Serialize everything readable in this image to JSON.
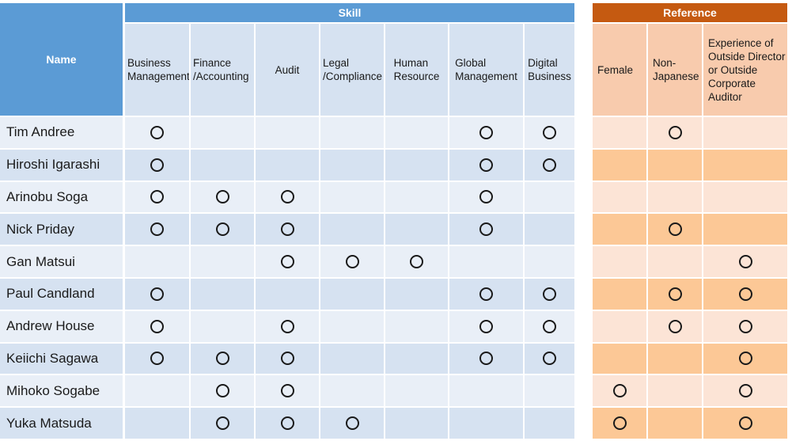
{
  "skill_header": "Skill",
  "reference_header": "Reference",
  "name_header": "Name",
  "skill_columns": [
    "Business\nManagement",
    "Finance\n/Accounting",
    "Audit",
    "Legal\n/Compliance",
    "Human\nResource",
    "Global\nManagement",
    "Digital\nBusiness"
  ],
  "reference_columns": [
    "Female",
    "Non-\nJapanese",
    "Experience of\nOutside Director\nor Outside\nCorporate\nAuditor"
  ],
  "mark_symbol": "circle",
  "colors": {
    "skill_header": "#5b9bd5",
    "reference_header": "#c55a11",
    "skill_row_light": "#e9eff7",
    "skill_row_dark": "#d6e2f1",
    "reference_row_light": "#fce4d6",
    "reference_row_dark": "#fcc896"
  },
  "rows": [
    {
      "name": "Tim Andree",
      "skills": [
        1,
        0,
        0,
        0,
        0,
        1,
        1
      ],
      "reference": [
        0,
        1,
        0
      ]
    },
    {
      "name": "Hiroshi Igarashi",
      "skills": [
        1,
        0,
        0,
        0,
        0,
        1,
        1
      ],
      "reference": [
        0,
        0,
        0
      ]
    },
    {
      "name": "Arinobu Soga",
      "skills": [
        1,
        1,
        1,
        0,
        0,
        1,
        0
      ],
      "reference": [
        0,
        0,
        0
      ]
    },
    {
      "name": "Nick Priday",
      "skills": [
        1,
        1,
        1,
        0,
        0,
        1,
        0
      ],
      "reference": [
        0,
        1,
        0
      ]
    },
    {
      "name": "Gan Matsui",
      "skills": [
        0,
        0,
        1,
        1,
        1,
        0,
        0
      ],
      "reference": [
        0,
        0,
        1
      ]
    },
    {
      "name": "Paul Candland",
      "skills": [
        1,
        0,
        0,
        0,
        0,
        1,
        1
      ],
      "reference": [
        0,
        1,
        1
      ]
    },
    {
      "name": "Andrew House",
      "skills": [
        1,
        0,
        1,
        0,
        0,
        1,
        1
      ],
      "reference": [
        0,
        1,
        1
      ]
    },
    {
      "name": "Keiichi Sagawa",
      "skills": [
        1,
        1,
        1,
        0,
        0,
        1,
        1
      ],
      "reference": [
        0,
        0,
        1
      ]
    },
    {
      "name": "Mihoko Sogabe",
      "skills": [
        0,
        1,
        1,
        0,
        0,
        0,
        0
      ],
      "reference": [
        1,
        0,
        1
      ]
    },
    {
      "name": "Yuka Matsuda",
      "skills": [
        0,
        1,
        1,
        1,
        0,
        0,
        0
      ],
      "reference": [
        1,
        0,
        1
      ]
    }
  ]
}
